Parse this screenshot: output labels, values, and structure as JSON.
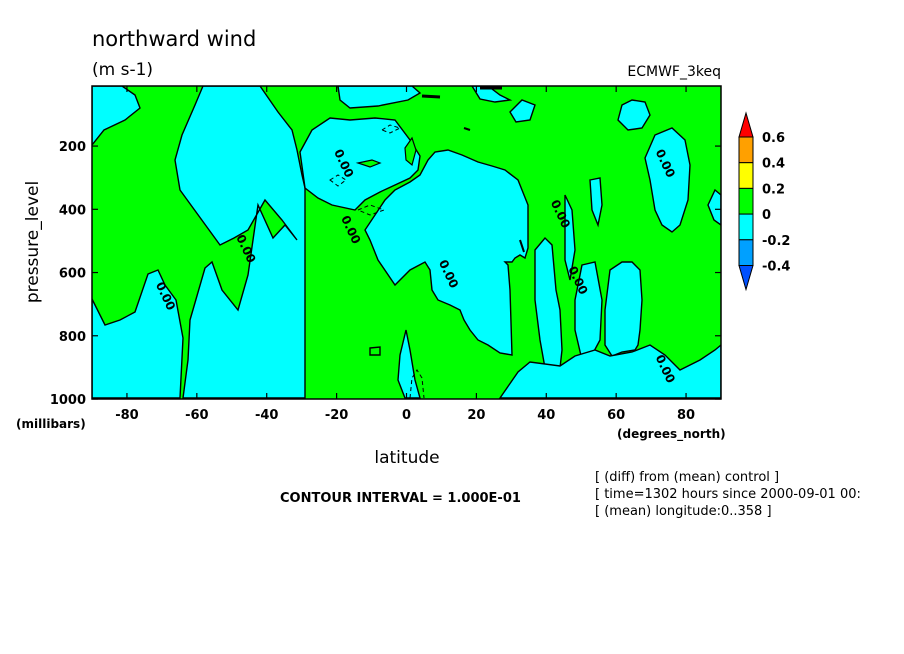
{
  "chart_data": {
    "type": "contour",
    "title": "northward wind",
    "units": "(m s-1)",
    "dataset": "ECMWF_3keq",
    "xlabel": "latitude",
    "xunits": "(degrees_north)",
    "ylabel": "pressure_level",
    "yunits": "(millibars)",
    "xlim": [
      -90,
      90
    ],
    "ylim": [
      1000,
      10
    ],
    "y_inverted": true,
    "x_ticks": [
      -80,
      -60,
      -40,
      -20,
      0,
      20,
      40,
      60,
      80
    ],
    "y_ticks": [
      200,
      400,
      600,
      800,
      1000
    ],
    "contour_interval": "CONTOUR INTERVAL = 1.000E-01",
    "info_lines": [
      "[ (diff) from (mean) control ]",
      "[ time=1302 hours since 2000-09-01 00:",
      "[ (mean) longitude:0..358 ]"
    ],
    "colorbar": {
      "labels": [
        "0.6",
        "0.4",
        "0.2",
        "0",
        "-0.2",
        "-0.4"
      ],
      "levels": [
        {
          "value_range": [
            0.6,
            null
          ],
          "color": "#ff0000"
        },
        {
          "value_range": [
            0.4,
            0.6
          ],
          "color": "#ffa000"
        },
        {
          "value_range": [
            0.2,
            0.4
          ],
          "color": "#ffff00"
        },
        {
          "value_range": [
            0.0,
            0.2
          ],
          "color": "#00ff00"
        },
        {
          "value_range": [
            -0.2,
            0.0
          ],
          "color": "#00ffff"
        },
        {
          "value_range": [
            -0.4,
            -0.2
          ],
          "color": "#00a0ff"
        },
        {
          "value_range": [
            null,
            -0.4
          ],
          "color": "#0050ff"
        }
      ]
    },
    "contour_labels": [
      {
        "lat": -70,
        "p": 680,
        "text": "0.00"
      },
      {
        "lat": -47,
        "p": 530,
        "text": "0.00"
      },
      {
        "lat": -19,
        "p": 260,
        "text": "0.00"
      },
      {
        "lat": -17,
        "p": 470,
        "text": "0.00"
      },
      {
        "lat": 11,
        "p": 610,
        "text": "0.00"
      },
      {
        "lat": 43,
        "p": 420,
        "text": "0.00"
      },
      {
        "lat": 48,
        "p": 630,
        "text": "0.00"
      },
      {
        "lat": 73,
        "p": 260,
        "text": "0.00"
      },
      {
        "lat": 73,
        "p": 910,
        "text": "0.00"
      }
    ]
  }
}
